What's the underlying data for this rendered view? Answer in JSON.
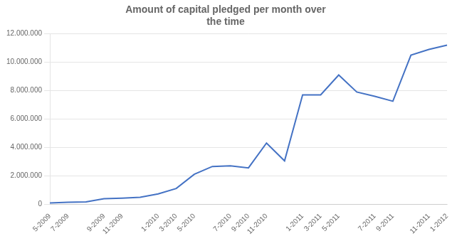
{
  "chart_data": {
    "type": "line",
    "title": "Amount of capital pledged per month over\nthe time",
    "categories": [
      "5-2009",
      "7-2009",
      null,
      "9-2009",
      "11-2009",
      null,
      "1-2010",
      "3-2010",
      "5-2010",
      null,
      "7-2010",
      "9-2010",
      "11-2010",
      null,
      "1-2011",
      "3-2011",
      "5-2011",
      null,
      "7-2011",
      "9-2011",
      null,
      "11-2011",
      "1-2012"
    ],
    "values": [
      80000,
      130000,
      160000,
      380000,
      420000,
      480000,
      720000,
      1100000,
      2100000,
      2650000,
      2700000,
      2550000,
      4300000,
      3050000,
      7700000,
      7700000,
      9100000,
      7900000,
      7600000,
      7250000,
      10500000,
      10900000,
      11200000
    ],
    "color": "#4472C4",
    "ylim": [
      0,
      12000000
    ],
    "yticks": [
      0,
      {
        "value": 2000000,
        "label": "2.000.000"
      },
      {
        "value": 4000000,
        "label": "4.000.000"
      },
      {
        "value": 6000000,
        "label": "6.000.000"
      },
      {
        "value": 8000000,
        "label": "8.000.000"
      },
      {
        "value": 10000000,
        "label": "10.000.000"
      },
      {
        "value": 12000000,
        "label": "12.000.000"
      }
    ],
    "grid": "y"
  }
}
